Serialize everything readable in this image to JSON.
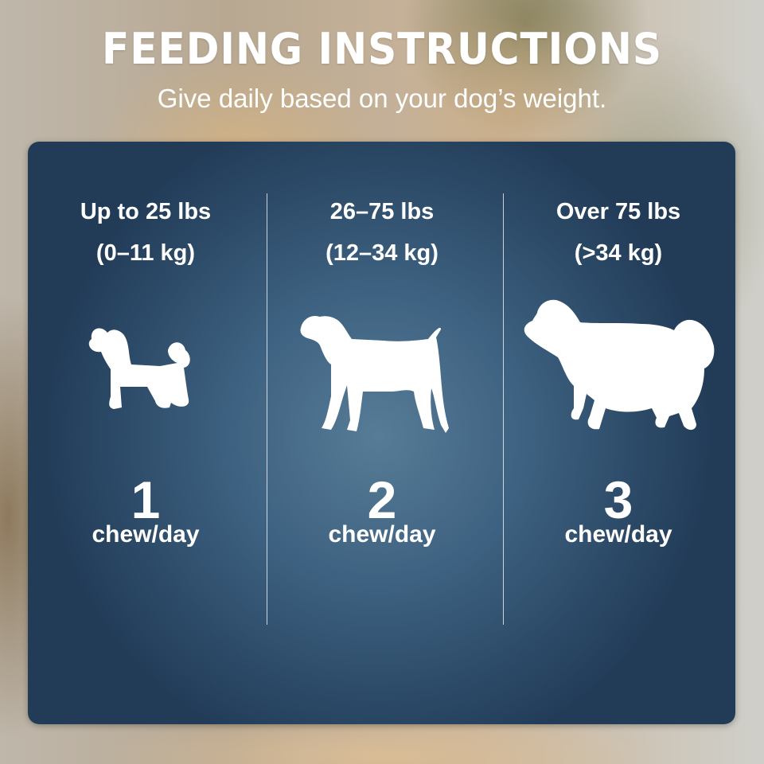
{
  "header": {
    "title": "FEEDING INSTRUCTIONS",
    "subtitle": "Give daily based on your dog’s weight."
  },
  "columns": [
    {
      "weight_lbs": "Up to 25 lbs",
      "weight_kg": "(0–11 kg)",
      "icon": "small-dog-silhouette-icon",
      "count": "1",
      "unit": "chew/day"
    },
    {
      "weight_lbs": "26–75 lbs",
      "weight_kg": "(12–34 kg)",
      "icon": "medium-dog-silhouette-icon",
      "count": "2",
      "unit": "chew/day"
    },
    {
      "weight_lbs": "Over 75 lbs",
      "weight_kg": "(>34 kg)",
      "icon": "large-dog-silhouette-icon",
      "count": "3",
      "unit": "chew/day"
    }
  ],
  "colors": {
    "panel": "#3d6180",
    "text": "#ffffff"
  }
}
